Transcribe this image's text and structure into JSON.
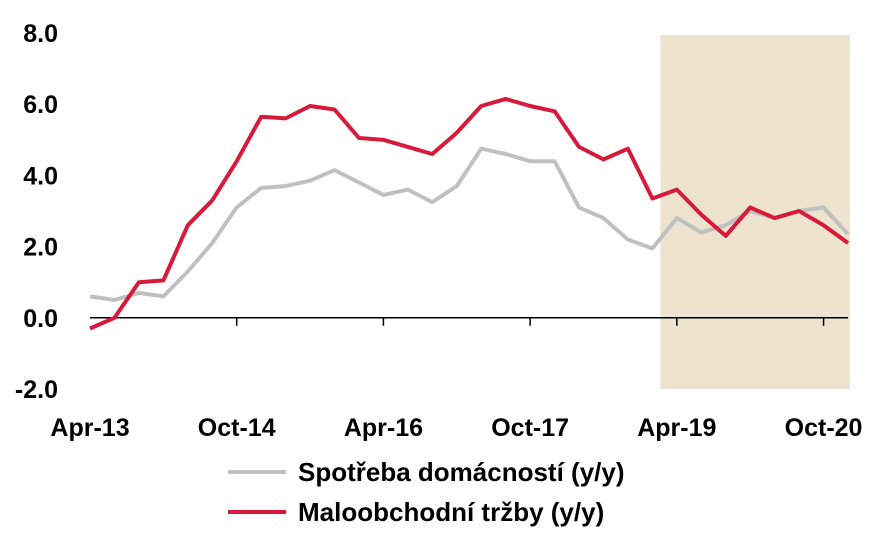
{
  "chart_data": {
    "type": "line",
    "x": [
      "Apr-13",
      "Jul-13",
      "Oct-13",
      "Jan-14",
      "Apr-14",
      "Jul-14",
      "Oct-14",
      "Jan-15",
      "Apr-15",
      "Jul-15",
      "Oct-15",
      "Jan-16",
      "Apr-16",
      "Jul-16",
      "Oct-16",
      "Jan-17",
      "Apr-17",
      "Jul-17",
      "Oct-17",
      "Jan-18",
      "Apr-18",
      "Jul-18",
      "Oct-18",
      "Jan-19",
      "Apr-19",
      "Jul-19",
      "Oct-19",
      "Jan-20",
      "Apr-20",
      "Jul-20",
      "Oct-20",
      "Jan-21"
    ],
    "x_tick_labels": [
      "Apr-13",
      "Oct-14",
      "Apr-16",
      "Oct-17",
      "Apr-19",
      "Oct-20"
    ],
    "y_tick_labels": [
      "8.0",
      "6.0",
      "4.0",
      "2.0",
      "0.0",
      "-2.0"
    ],
    "ylim": [
      -2,
      8
    ],
    "forecast_shade": {
      "from": "Jan-19",
      "to": "Jan-21",
      "color": "#ede3ce"
    },
    "series": [
      {
        "name": "Spotřeba domácností (y/y)",
        "color": "#c0c0c0",
        "values": [
          0.6,
          0.5,
          0.7,
          0.6,
          1.3,
          2.1,
          3.1,
          3.65,
          3.7,
          3.85,
          4.15,
          3.8,
          3.45,
          3.6,
          3.25,
          3.7,
          4.75,
          4.6,
          4.4,
          4.4,
          3.1,
          2.8,
          2.2,
          1.95,
          2.8,
          2.4,
          2.6,
          3.0,
          2.8,
          3.0,
          3.1,
          2.35
        ]
      },
      {
        "name": "Maloobchodní tržby (y/y)",
        "color": "#d81a3a",
        "values": [
          -0.3,
          0.0,
          1.0,
          1.05,
          2.6,
          3.3,
          4.4,
          5.65,
          5.6,
          5.95,
          5.85,
          5.05,
          5.0,
          4.8,
          4.6,
          5.2,
          5.95,
          6.15,
          5.95,
          5.8,
          4.8,
          4.45,
          4.75,
          3.35,
          3.6,
          2.9,
          2.3,
          3.1,
          2.8,
          3.0,
          2.6,
          2.1
        ]
      }
    ]
  }
}
